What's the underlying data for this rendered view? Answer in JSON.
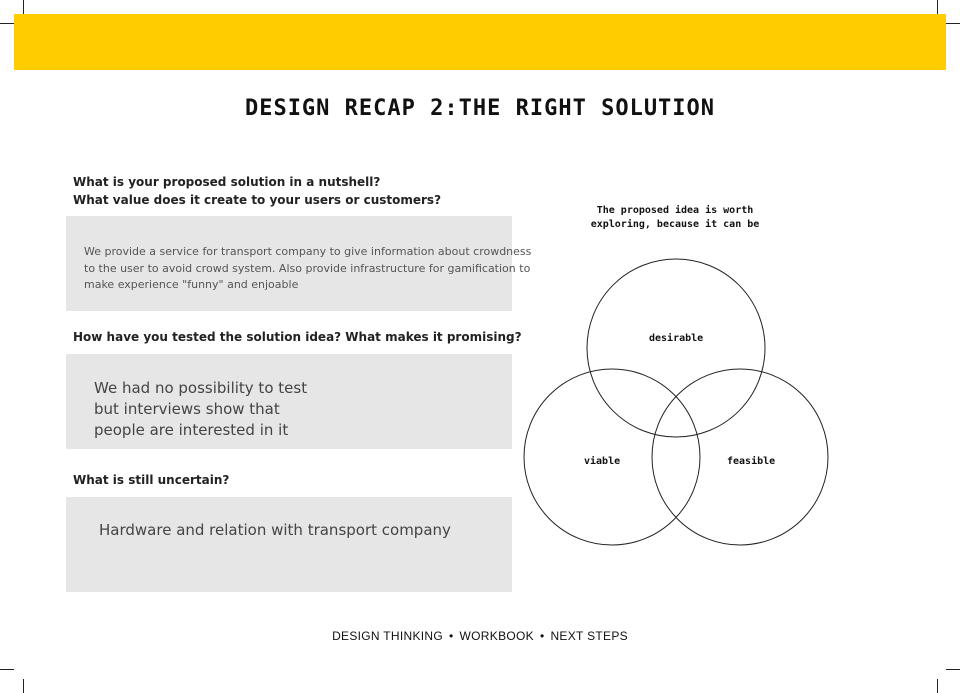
{
  "colors": {
    "banner": "#ffcc00",
    "answer_box": "#e6e6e6"
  },
  "title": "DESIGN RECAP 2:THE RIGHT SOLUTION",
  "questions": {
    "q1": {
      "line1": "What is your proposed solution in a nutshell?",
      "line2": "What value does it create to your users or customers?",
      "answer_lines": [
        "We provide a service for transport company to give information about crowdness",
        "to the user to avoid crowd system. Also provide infrastructure for gamification to",
        "make experience \"funny\" and enjoable"
      ]
    },
    "q2": {
      "line1": "How have you tested the solution idea? What makes it promising?",
      "answer_lines": [
        "We had no possibility to test",
        "but interviews show that",
        "people are interested in it"
      ]
    },
    "q3": {
      "line1": "What is still uncertain?",
      "answer_lines": [
        "Hardware and relation with transport company"
      ]
    }
  },
  "venn": {
    "caption_line1": "The proposed idea is worth",
    "caption_line2": "exploring, because it can be",
    "labels": {
      "top": "desirable",
      "left": "viable",
      "right": "feasible"
    }
  },
  "footer": {
    "item1": "DESIGN THINKING",
    "item2": "WORKBOOK",
    "item3": "NEXT STEPS",
    "separator": "•"
  }
}
